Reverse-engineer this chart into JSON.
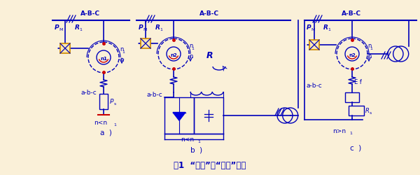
{
  "bg_color": "#faf0d8",
  "line_color": "#0000bb",
  "red_color": "#cc0000",
  "orange_color": "#cc8800",
  "title": "图1  “单馈”与“双馈”电机",
  "label_a": "a )",
  "label_b": "b )",
  "label_c": "c )",
  "abc_upper": "A-B-C",
  "n_lt_n1_a": "n<n1",
  "n_lt_n1_b": "n<n1",
  "n_gt_n1_c": "n>n1",
  "n1_label": "n1",
  "n_label": "n",
  "n2_label": "n2",
  "Ps_label": "Ps",
  "PM_label": "PM",
  "R_label": "R",
  "Ef_label": "E f",
  "R1_label": "R1",
  "Rs_label": "Rs",
  "abc_lower": "a-b-c"
}
